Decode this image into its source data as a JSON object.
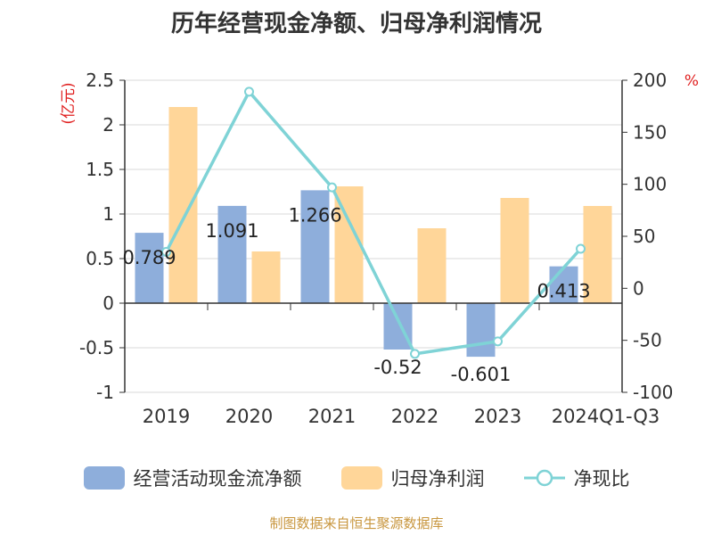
{
  "chart_data": {
    "type": "bar",
    "title": "历年经营现金净额、归母净利润情况",
    "categories": [
      "2019",
      "2020",
      "2021",
      "2022",
      "2023",
      "2024Q1-Q3"
    ],
    "series": [
      {
        "name": "经营活动现金流净额",
        "type": "bar",
        "axis": "left",
        "color": "#8eaedb",
        "values": [
          0.789,
          1.091,
          1.266,
          -0.52,
          -0.601,
          0.413
        ],
        "labels": [
          "0.789",
          "1.091",
          "1.266",
          "-0.52",
          "-0.601",
          "0.413"
        ]
      },
      {
        "name": "归母净利润",
        "type": "bar",
        "axis": "left",
        "color": "#ffd699",
        "values": [
          2.2,
          0.58,
          1.31,
          0.84,
          1.18,
          1.09
        ]
      },
      {
        "name": "净现比",
        "type": "line",
        "axis": "right",
        "color": "#7fd3d6",
        "values": [
          35,
          189,
          97,
          -63,
          -51,
          38
        ]
      }
    ],
    "y_left": {
      "unit": "(亿元)",
      "min": -1,
      "max": 2.5,
      "ticks": [
        2.5,
        2,
        1.5,
        1,
        0.5,
        0,
        -0.5,
        -1
      ],
      "tick_labels": [
        "2.5",
        "2",
        "1.5",
        "1",
        "0.5",
        "0",
        "-0.5",
        "-1"
      ]
    },
    "y_right": {
      "unit": "%",
      "min": -100,
      "max": 200,
      "ticks": [
        200,
        150,
        100,
        50,
        0,
        -50,
        -100
      ],
      "tick_labels": [
        "200",
        "150",
        "100",
        "50",
        "0",
        "-50",
        "-100"
      ]
    },
    "grid": true,
    "legend_position": "bottom"
  },
  "source_text": "制图数据来自恒生聚源数据库"
}
